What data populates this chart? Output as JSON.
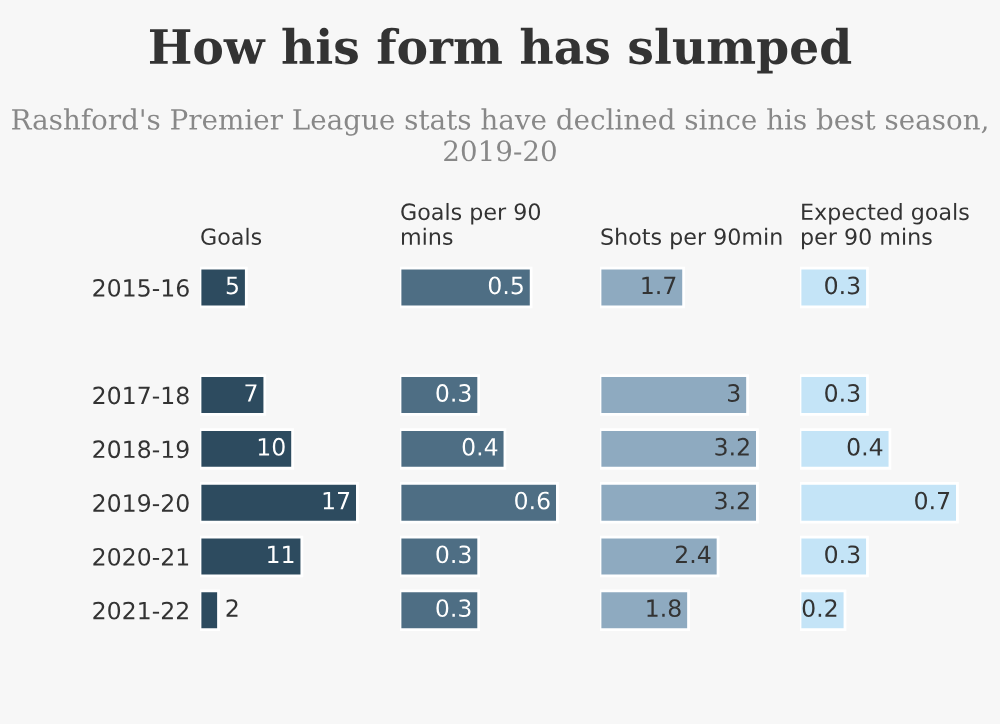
{
  "chart_data": [
    {
      "type": "bar",
      "orientation": "horizontal",
      "title": "How his form has slumped",
      "subtitle": "Rashford's Premier League stats have declined since his best season, 2019-20",
      "xlabel": "Goals",
      "categories": [
        "2015-16",
        null,
        "2017-18",
        "2018-19",
        "2019-20",
        "2020-21",
        "2021-22"
      ],
      "values": [
        5,
        null,
        7,
        10,
        17,
        11,
        2
      ],
      "color": "#2d4b5f",
      "data_labels": true
    },
    {
      "type": "bar",
      "orientation": "horizontal",
      "xlabel": "Goals per 90 mins",
      "categories": [
        "2015-16",
        null,
        "2017-18",
        "2018-19",
        "2019-20",
        "2020-21",
        "2021-22"
      ],
      "values": [
        0.5,
        null,
        0.3,
        0.4,
        0.6,
        0.3,
        0.3
      ],
      "color": "#4e6e84",
      "data_labels": true,
      "tick_labels": false
    },
    {
      "type": "bar",
      "orientation": "horizontal",
      "xlabel": "Shots per 90min",
      "categories": [
        "2015-16",
        null,
        "2017-18",
        "2018-19",
        "2019-20",
        "2020-21",
        "2021-22"
      ],
      "values": [
        1.7,
        null,
        3,
        3.2,
        3.2,
        2.4,
        1.8
      ],
      "color": "#8eaac0",
      "data_labels": true,
      "tick_labels": false
    },
    {
      "type": "bar",
      "orientation": "horizontal",
      "xlabel": "Expected goals per 90 mins",
      "categories": [
        "2015-16",
        null,
        "2017-18",
        "2018-19",
        "2019-20",
        "2020-21",
        "2021-22"
      ],
      "values": [
        0.3,
        null,
        0.3,
        0.4,
        0.7,
        0.3,
        0.2
      ],
      "color": "#c4e4f7",
      "data_labels": true,
      "tick_labels": false
    }
  ]
}
